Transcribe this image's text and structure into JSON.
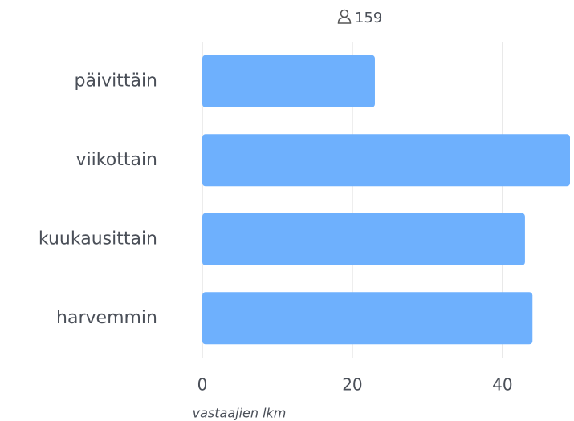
{
  "chart_data": {
    "type": "bar",
    "orientation": "horizontal",
    "respondents": 159,
    "categories": [
      "päivittäin",
      "viikottain",
      "kuukausittain",
      "harvemmin"
    ],
    "values": [
      23,
      49,
      43,
      44
    ],
    "color": "#6eb0fd",
    "xlabel": "vastaajien lkm",
    "xlim": [
      0,
      49
    ],
    "xticks": [
      0,
      20,
      40
    ],
    "grid": true
  }
}
